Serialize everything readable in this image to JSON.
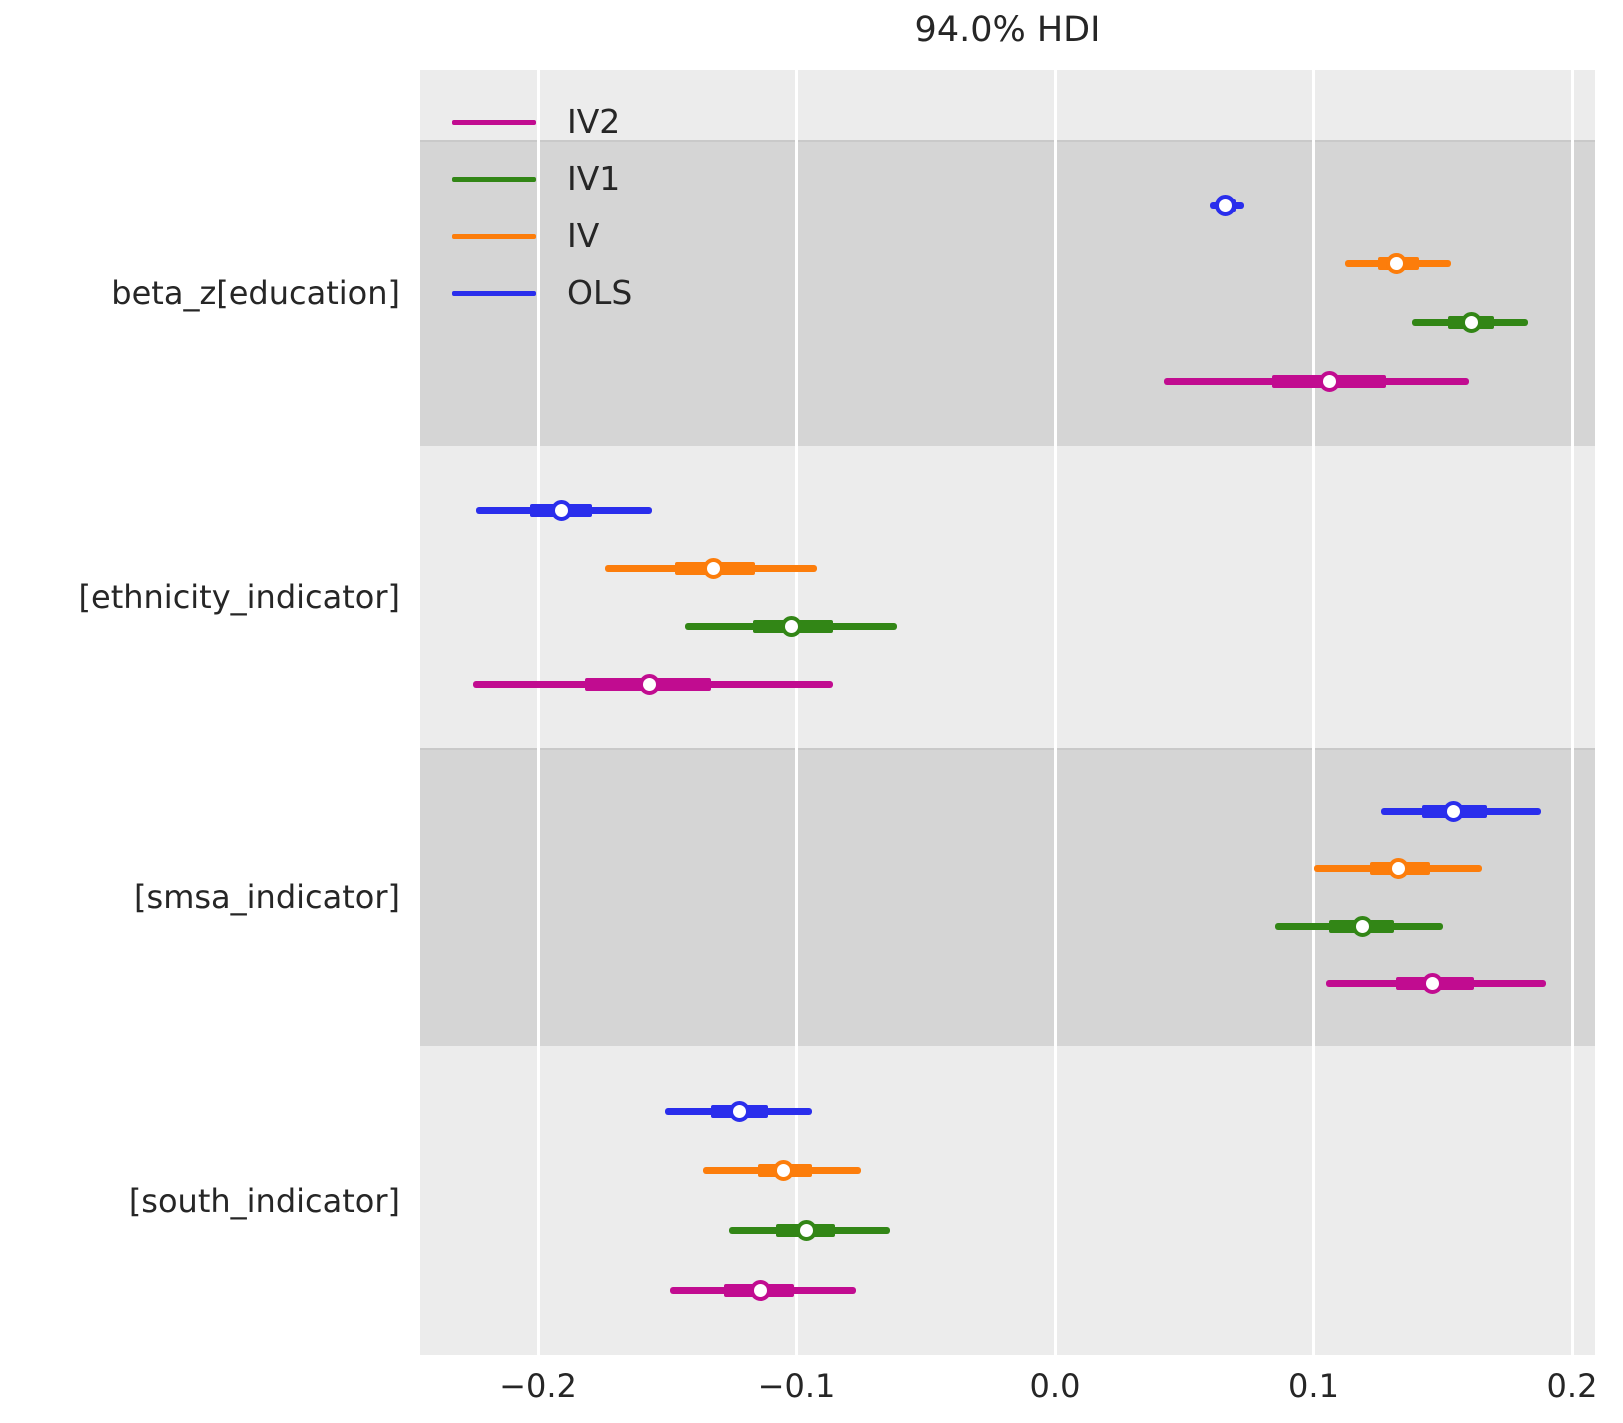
{
  "title": "94.0% HDI",
  "legend": [
    {
      "label": "IV2",
      "color": "#c10c90"
    },
    {
      "label": "IV1",
      "color": "#328616"
    },
    {
      "label": "IV",
      "color": "#fc7d0b"
    },
    {
      "label": "OLS",
      "color": "#2a2eec"
    }
  ],
  "style": {
    "plot_bg_light": "#ececec",
    "plot_bg_dark": "#d5d5d5",
    "gridline_color": "#ffffff",
    "text_color": "#262626"
  },
  "chart_data": {
    "type": "forest",
    "title": "94.0% HDI",
    "hdi_prob": 0.94,
    "xlabel": "",
    "xlim": [
      -0.246,
      0.209
    ],
    "grid": true,
    "legend_position": "upper-left",
    "models_top_to_bottom": [
      "OLS",
      "IV",
      "IV1",
      "IV2"
    ],
    "x_ticks": [
      {
        "label": "−0.2",
        "value": -0.2
      },
      {
        "label": "−0.1",
        "value": -0.1
      },
      {
        "label": "0.0",
        "value": 0.0
      },
      {
        "label": "0.1",
        "value": 0.1
      },
      {
        "label": "0.2",
        "value": 0.2
      }
    ],
    "groups": [
      {
        "label": "beta_z[education]",
        "shaded": true,
        "rows": [
          {
            "model": "OLS",
            "color": "#2a2eec",
            "hdi_lo": 0.06,
            "q25": 0.063,
            "median": 0.066,
            "q75": 0.07,
            "hdi_hi": 0.073
          },
          {
            "model": "IV",
            "color": "#fc7d0b",
            "hdi_lo": 0.112,
            "q25": 0.125,
            "median": 0.132,
            "q75": 0.141,
            "hdi_hi": 0.153
          },
          {
            "model": "IV1",
            "color": "#328616",
            "hdi_lo": 0.138,
            "q25": 0.152,
            "median": 0.161,
            "q75": 0.17,
            "hdi_hi": 0.183
          },
          {
            "model": "IV2",
            "color": "#c10c90",
            "hdi_lo": 0.042,
            "q25": 0.084,
            "median": 0.106,
            "q75": 0.128,
            "hdi_hi": 0.16
          }
        ]
      },
      {
        "label": "[ethnicity_indicator]",
        "shaded": false,
        "rows": [
          {
            "model": "OLS",
            "color": "#2a2eec",
            "hdi_lo": -0.224,
            "q25": -0.203,
            "median": -0.191,
            "q75": -0.179,
            "hdi_hi": -0.156
          },
          {
            "model": "IV",
            "color": "#fc7d0b",
            "hdi_lo": -0.174,
            "q25": -0.147,
            "median": -0.132,
            "q75": -0.116,
            "hdi_hi": -0.092
          },
          {
            "model": "IV1",
            "color": "#328616",
            "hdi_lo": -0.143,
            "q25": -0.117,
            "median": -0.102,
            "q75": -0.086,
            "hdi_hi": -0.061
          },
          {
            "model": "IV2",
            "color": "#c10c90",
            "hdi_lo": -0.225,
            "q25": -0.182,
            "median": -0.157,
            "q75": -0.133,
            "hdi_hi": -0.086
          }
        ]
      },
      {
        "label": "[smsa_indicator]",
        "shaded": true,
        "rows": [
          {
            "model": "OLS",
            "color": "#2a2eec",
            "hdi_lo": 0.126,
            "q25": 0.142,
            "median": 0.154,
            "q75": 0.167,
            "hdi_hi": 0.188
          },
          {
            "model": "IV",
            "color": "#fc7d0b",
            "hdi_lo": 0.1,
            "q25": 0.122,
            "median": 0.133,
            "q75": 0.145,
            "hdi_hi": 0.165
          },
          {
            "model": "IV1",
            "color": "#328616",
            "hdi_lo": 0.085,
            "q25": 0.106,
            "median": 0.119,
            "q75": 0.131,
            "hdi_hi": 0.15
          },
          {
            "model": "IV2",
            "color": "#c10c90",
            "hdi_lo": 0.105,
            "q25": 0.132,
            "median": 0.146,
            "q75": 0.162,
            "hdi_hi": 0.19
          }
        ]
      },
      {
        "label": "[south_indicator]",
        "shaded": false,
        "rows": [
          {
            "model": "OLS",
            "color": "#2a2eec",
            "hdi_lo": -0.151,
            "q25": -0.133,
            "median": -0.122,
            "q75": -0.111,
            "hdi_hi": -0.094
          },
          {
            "model": "IV",
            "color": "#fc7d0b",
            "hdi_lo": -0.136,
            "q25": -0.115,
            "median": -0.105,
            "q75": -0.094,
            "hdi_hi": -0.075
          },
          {
            "model": "IV1",
            "color": "#328616",
            "hdi_lo": -0.126,
            "q25": -0.108,
            "median": -0.096,
            "q75": -0.085,
            "hdi_hi": -0.064
          },
          {
            "model": "IV2",
            "color": "#c10c90",
            "hdi_lo": -0.149,
            "q25": -0.128,
            "median": -0.114,
            "q75": -0.101,
            "hdi_hi": -0.077
          }
        ]
      }
    ]
  }
}
